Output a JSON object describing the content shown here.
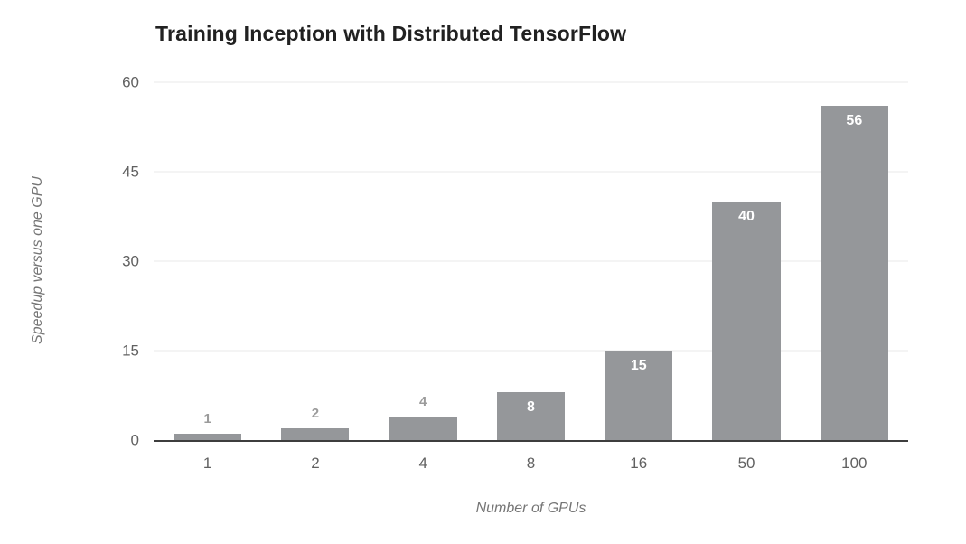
{
  "chart_data": {
    "type": "bar",
    "title": "Training Inception with Distributed TensorFlow",
    "xlabel": "Number of GPUs",
    "ylabel": "Speedup versus one GPU",
    "categories": [
      "1",
      "2",
      "4",
      "8",
      "16",
      "50",
      "100"
    ],
    "values": [
      1,
      2,
      4,
      8,
      15,
      40,
      56
    ],
    "bar_labels": [
      "1",
      "2",
      "4",
      "8",
      "15",
      "40",
      "56"
    ],
    "yticks": [
      0,
      15,
      30,
      45,
      60
    ],
    "ylim": [
      0,
      60
    ],
    "grid": true,
    "legend": "none",
    "colors": {
      "bar": "#95979a",
      "gridline": "#e8e8e8",
      "axis_line": "#3e3e3e",
      "title_text": "#212121",
      "tick_text": "#616161",
      "axis_title_text": "#757575",
      "label_inside": "#ffffff",
      "label_outside": "#9b9b9b"
    }
  }
}
